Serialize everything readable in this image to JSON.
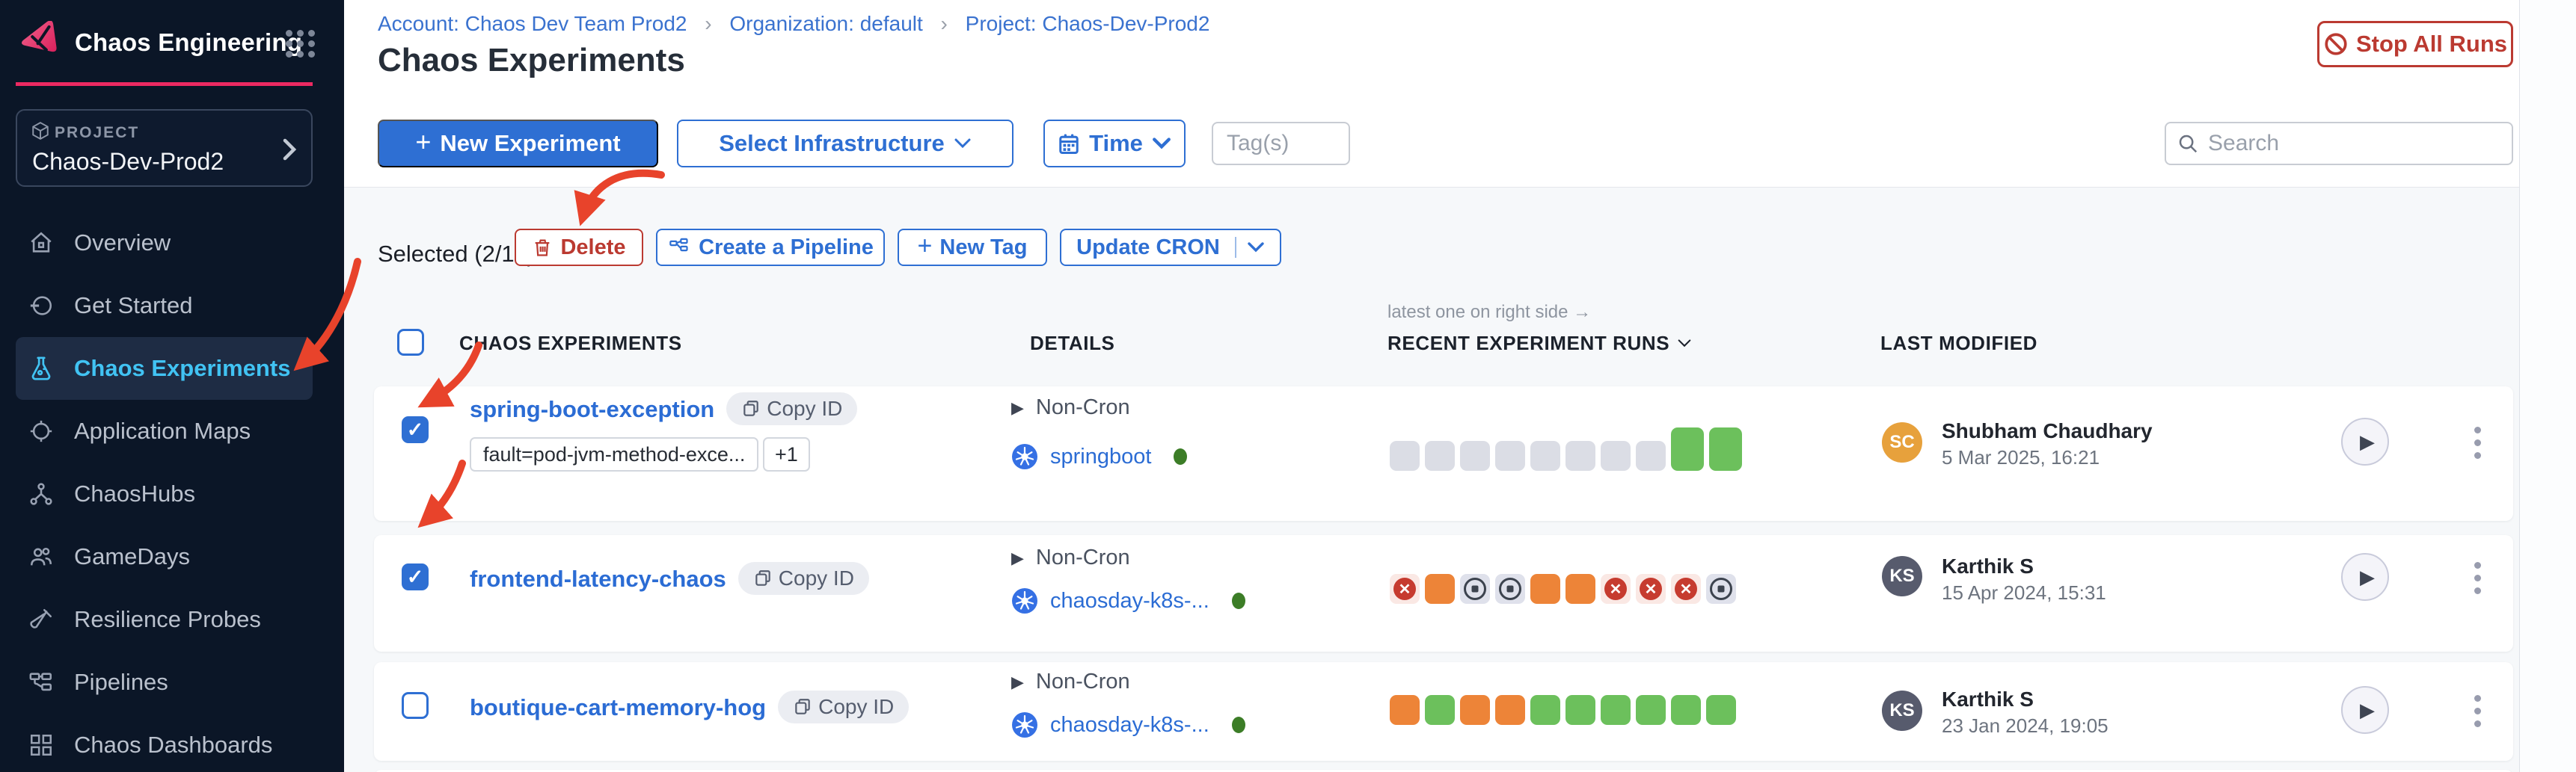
{
  "app": {
    "accent_pink": "#ec2961",
    "primary_blue": "#2e6fd3",
    "annotation_red": "#e8432b"
  },
  "sidebar": {
    "app_title": "Chaos Engineering",
    "project_label": "PROJECT",
    "project_name": "Chaos-Dev-Prod2",
    "items": [
      {
        "label": "Overview",
        "icon": "home-icon",
        "active": false
      },
      {
        "label": "Get Started",
        "icon": "get-started-icon",
        "active": false
      },
      {
        "label": "Chaos Experiments",
        "icon": "flask-icon",
        "active": true
      },
      {
        "label": "Application Maps",
        "icon": "crosshair-icon",
        "active": false
      },
      {
        "label": "ChaosHubs",
        "icon": "network-icon",
        "active": false
      },
      {
        "label": "GameDays",
        "icon": "people-icon",
        "active": false
      },
      {
        "label": "Resilience Probes",
        "icon": "test-tube-icon",
        "active": false
      },
      {
        "label": "Pipelines",
        "icon": "pipeline-icon",
        "active": false
      },
      {
        "label": "Chaos Dashboards",
        "icon": "dashboard-icon",
        "active": false
      }
    ]
  },
  "header": {
    "breadcrumb": [
      "Account: Chaos Dev Team Prod2",
      "Organization: default",
      "Project: Chaos-Dev-Prod2"
    ],
    "separator": "›",
    "title": "Chaos Experiments",
    "stop_all_runs_label": "Stop All Runs"
  },
  "toolbar": {
    "new_experiment_label": "New Experiment",
    "select_infrastructure_label": "Select Infrastructure",
    "time_label": "Time",
    "tags_placeholder": "Tag(s)",
    "search_placeholder": "Search"
  },
  "selection_bar": {
    "selected_text": "Selected (2/15)",
    "delete_label": "Delete",
    "create_pipeline_label": "Create a Pipeline",
    "new_tag_label": "New Tag",
    "update_cron_label": "Update CRON"
  },
  "table": {
    "runs_note": "latest one on right side →",
    "headers": {
      "experiments": "CHAOS EXPERIMENTS",
      "details": "DETAILS",
      "recent_runs": "RECENT EXPERIMENT RUNS",
      "last_modified": "LAST MODIFIED"
    },
    "rows": [
      {
        "name": "spring-boot-exception",
        "copy_id_label": "Copy ID",
        "checked": true,
        "tags": [
          "fault=pod-jvm-method-exce...",
          "+1"
        ],
        "schedule": "Non-Cron",
        "infrastructure": "springboot",
        "runs": [
          "gray",
          "gray",
          "gray",
          "gray",
          "gray",
          "gray",
          "gray",
          "gray",
          "green-tall",
          "green-tall"
        ],
        "modified_by": "Shubham Chaudhary",
        "avatar_initials": "SC",
        "avatar_color": "#e7a13c",
        "modified_date": "5 Mar 2025, 16:21"
      },
      {
        "name": "frontend-latency-chaos",
        "copy_id_label": "Copy ID",
        "checked": true,
        "tags": [],
        "schedule": "Non-Cron",
        "infrastructure": "chaosday-k8s-...",
        "runs": [
          "failed",
          "orange",
          "stopped",
          "stopped",
          "orange",
          "orange",
          "failed",
          "failed",
          "failed",
          "stopped"
        ],
        "modified_by": "Karthik S",
        "avatar_initials": "KS",
        "avatar_color": "#575b6d",
        "modified_date": "15 Apr 2024, 15:31"
      },
      {
        "name": "boutique-cart-memory-hog",
        "copy_id_label": "Copy ID",
        "checked": false,
        "tags": [],
        "schedule": "Non-Cron",
        "infrastructure": "chaosday-k8s-...",
        "runs": [
          "orange",
          "green",
          "orange",
          "orange",
          "green",
          "green",
          "green",
          "green",
          "green",
          "green"
        ],
        "modified_by": "Karthik S",
        "avatar_initials": "KS",
        "avatar_color": "#575b6d",
        "modified_date": "23 Jan 2024, 19:05"
      }
    ]
  }
}
